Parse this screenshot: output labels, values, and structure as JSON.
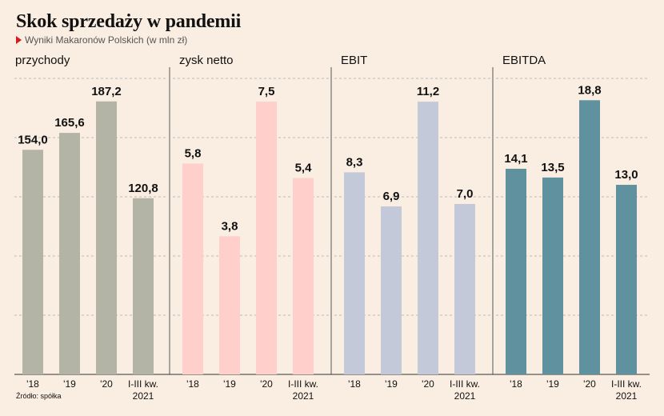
{
  "title": "Skok sprzedaży w pandemii",
  "subtitle": "Wyniki Makaronów Polskich (w mln zł)",
  "source": "Źródło: spółka",
  "chart_data": [
    {
      "type": "bar",
      "title": "przychody",
      "categories": [
        "'18",
        "'19",
        "'20",
        "I-III kw. 2021"
      ],
      "values": [
        154.0,
        165.6,
        187.2,
        120.8
      ],
      "labels": [
        "154,0",
        "165,6",
        "187,2",
        "120,8"
      ],
      "ylim": [
        0,
        192
      ],
      "color": "#b3b3a6",
      "grid": true
    },
    {
      "type": "bar",
      "title": "zysk netto",
      "categories": [
        "'18",
        "'19",
        "'20",
        "I-III kw. 2021"
      ],
      "values": [
        5.8,
        3.8,
        7.5,
        5.4
      ],
      "labels": [
        "5,8",
        "3,8",
        "7,5",
        "5,4"
      ],
      "ylim": [
        0,
        7.7
      ],
      "color": "#ffcfcc",
      "grid": true
    },
    {
      "type": "bar",
      "title": "EBIT",
      "categories": [
        "'18",
        "'19",
        "'20",
        "I-III kw. 2021"
      ],
      "values": [
        8.3,
        6.9,
        11.2,
        7.0
      ],
      "labels": [
        "8,3",
        "6,9",
        "11,2",
        "7,0"
      ],
      "ylim": [
        0,
        11.5
      ],
      "color": "#c3c9d9",
      "grid": true
    },
    {
      "type": "bar",
      "title": "EBITDA",
      "categories": [
        "'18",
        "'19",
        "'20",
        "I-III kw. 2021"
      ],
      "values": [
        14.1,
        13.5,
        18.8,
        13.0
      ],
      "labels": [
        "14,1",
        "13,5",
        "18,8",
        "13,0"
      ],
      "ylim": [
        0,
        19.2
      ],
      "color": "#5f919f",
      "grid": true
    }
  ]
}
